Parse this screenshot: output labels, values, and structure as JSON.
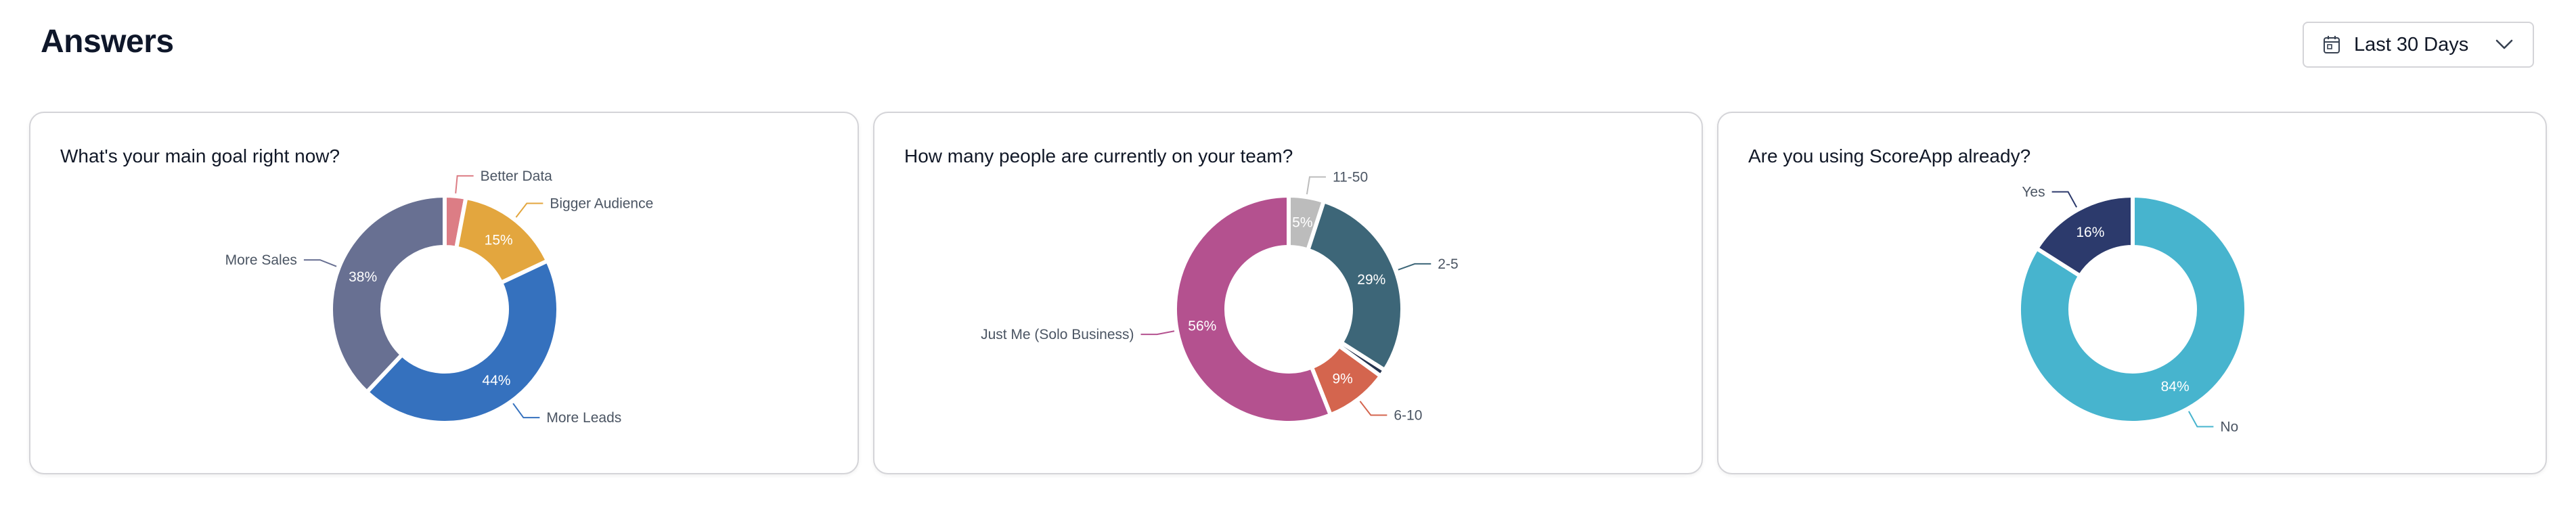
{
  "header": {
    "title": "Answers",
    "date_filter": {
      "label": "Last 30 Days",
      "icon": "calendar-icon",
      "dropdown_icon": "chevron-down-icon"
    }
  },
  "chart_data": [
    {
      "type": "pie",
      "donut": true,
      "title": "What's your main goal right now?",
      "slices": [
        {
          "name": "Better Data",
          "value": 3,
          "show_value": false,
          "color": "#dc7d85"
        },
        {
          "name": "Bigger Audience",
          "value": 15,
          "show_value": true,
          "color": "#e3a63e"
        },
        {
          "name": "More Leads",
          "value": 44,
          "show_value": true,
          "color": "#3571be"
        },
        {
          "name": "More Sales",
          "value": 38,
          "show_value": true,
          "color": "#687092"
        }
      ]
    },
    {
      "type": "pie",
      "donut": true,
      "title": "How many people are currently on your team?",
      "slices": [
        {
          "name": "11-50",
          "value": 5,
          "show_value": true,
          "color": "#bcbcbc"
        },
        {
          "name": "2-5",
          "value": 29,
          "show_value": true,
          "color": "#3d6678"
        },
        {
          "name": "",
          "value": 1,
          "show_value": false,
          "color": "#26344f"
        },
        {
          "name": "6-10",
          "value": 9,
          "show_value": true,
          "color": "#d4654e"
        },
        {
          "name": "Just Me (Solo Business)",
          "value": 56,
          "show_value": true,
          "color": "#b4518f"
        }
      ]
    },
    {
      "type": "pie",
      "donut": true,
      "title": "Are you using ScoreApp already?",
      "slices": [
        {
          "name": "No",
          "value": 84,
          "show_value": true,
          "color": "#47b4ce"
        },
        {
          "name": "Yes",
          "value": 16,
          "show_value": true,
          "color": "#2c3a6c"
        }
      ]
    }
  ]
}
